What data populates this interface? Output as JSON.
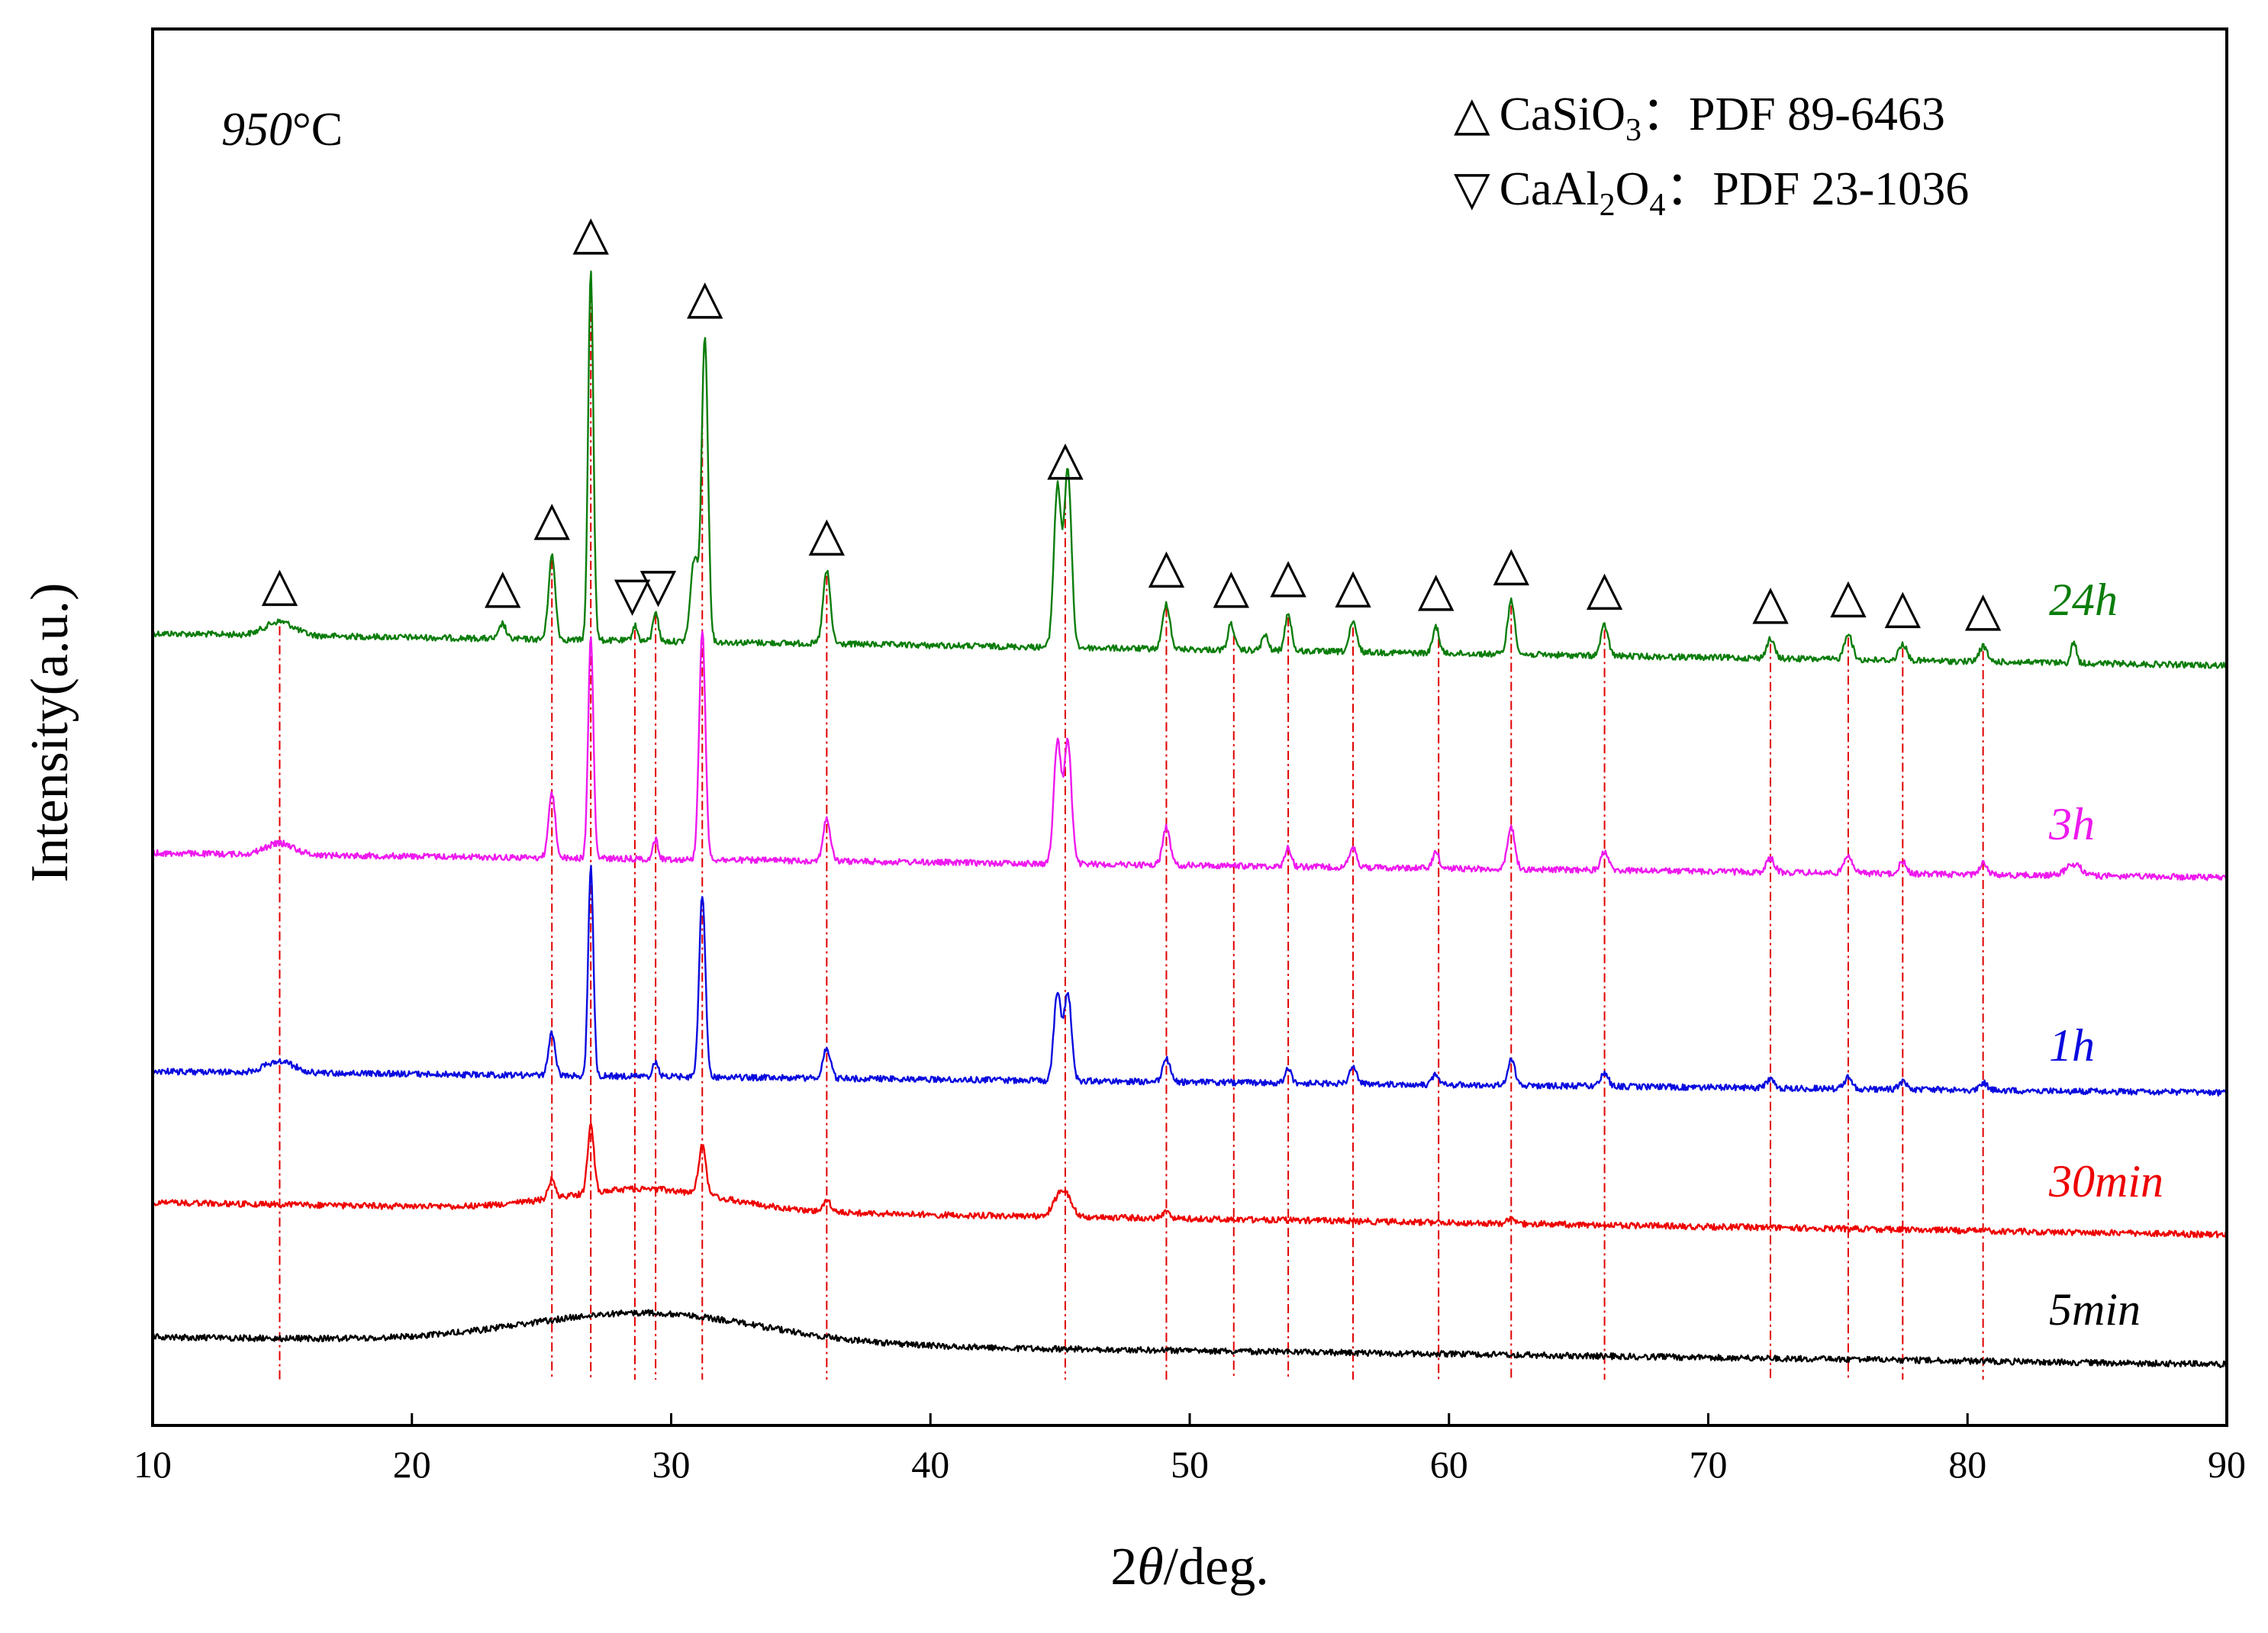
{
  "chart_data": {
    "type": "line",
    "title": "",
    "xlabel": "2θ/deg.",
    "xlabel_prefix": "2",
    "xlabel_theta": "θ",
    "xlabel_suffix": "/deg.",
    "ylabel": "Intensity(a.u.)",
    "xlim": [
      10,
      90
    ],
    "xticks": [
      10,
      20,
      30,
      40,
      50,
      60,
      70,
      80,
      90
    ],
    "annotation": {
      "temp_value": "950",
      "temp_unit": "°C"
    },
    "legend": [
      {
        "symbol": "△",
        "formula": "CaSiO",
        "sub": "3",
        "pdf": "：PDF 89-6463"
      },
      {
        "symbol": "▽",
        "formula": "CaAl",
        "sub": "2",
        "formula2": "O",
        "sub2": "4",
        "pdf": "：PDF 23-1036"
      }
    ],
    "reference_lines_2theta": [
      14.9,
      25.4,
      26.9,
      28.6,
      29.4,
      31.2,
      36.0,
      45.2,
      49.1,
      51.7,
      53.8,
      56.3,
      59.6,
      62.4,
      66.0,
      72.4,
      75.4,
      77.5,
      80.6
    ],
    "reference_line_color": "#e00000",
    "markers": [
      {
        "x": 14.9,
        "symbol": "△",
        "level": 0.0
      },
      {
        "x": 23.5,
        "symbol": "△",
        "level": 0.0
      },
      {
        "x": 25.4,
        "symbol": "△",
        "level": 1.0
      },
      {
        "x": 26.9,
        "symbol": "△",
        "level": 4.0
      },
      {
        "x": 28.5,
        "symbol": "▽",
        "level": 0.0
      },
      {
        "x": 29.5,
        "symbol": "▽",
        "level": 0.0
      },
      {
        "x": 31.3,
        "symbol": "△",
        "level": 3.2
      },
      {
        "x": 36.0,
        "symbol": "△",
        "level": 0.4
      },
      {
        "x": 45.2,
        "symbol": "△",
        "level": 1.9
      },
      {
        "x": 49.1,
        "symbol": "△",
        "level": 0.0
      },
      {
        "x": 51.6,
        "symbol": "△",
        "level": 0.0
      },
      {
        "x": 53.8,
        "symbol": "△",
        "level": 0.0
      },
      {
        "x": 56.3,
        "symbol": "△",
        "level": 0.0
      },
      {
        "x": 59.5,
        "symbol": "△",
        "level": 0.0
      },
      {
        "x": 62.4,
        "symbol": "△",
        "level": 0.0
      },
      {
        "x": 66.0,
        "symbol": "△",
        "level": 0.0
      },
      {
        "x": 72.4,
        "symbol": "△",
        "level": 0.0
      },
      {
        "x": 75.4,
        "symbol": "△",
        "level": 0.0
      },
      {
        "x": 77.5,
        "symbol": "△",
        "level": 0.0
      },
      {
        "x": 80.6,
        "symbol": "△",
        "level": 0.0
      }
    ],
    "series": [
      {
        "name": "24h",
        "color": "#0b7d0b",
        "baseline": [
          [
            10,
            830
          ],
          [
            90,
            872
          ]
        ],
        "noise": 4,
        "peaks": [
          [
            14.9,
            18,
            0.55
          ],
          [
            23.5,
            20,
            0.12
          ],
          [
            25.4,
            110,
            0.13
          ],
          [
            26.9,
            485,
            0.1
          ],
          [
            28.6,
            20,
            0.1
          ],
          [
            29.4,
            40,
            0.1
          ],
          [
            30.9,
            110,
            0.15
          ],
          [
            31.3,
            400,
            0.12
          ],
          [
            36.0,
            95,
            0.14
          ],
          [
            44.9,
            210,
            0.14
          ],
          [
            45.3,
            230,
            0.14
          ],
          [
            49.1,
            60,
            0.14
          ],
          [
            51.6,
            35,
            0.12
          ],
          [
            52.9,
            20,
            0.12
          ],
          [
            53.8,
            50,
            0.12
          ],
          [
            56.3,
            38,
            0.14
          ],
          [
            59.5,
            35,
            0.12
          ],
          [
            62.4,
            70,
            0.14
          ],
          [
            66.0,
            40,
            0.14
          ],
          [
            72.4,
            25,
            0.15
          ],
          [
            75.4,
            35,
            0.15
          ],
          [
            77.5,
            22,
            0.15
          ],
          [
            80.6,
            20,
            0.15
          ],
          [
            84.1,
            28,
            0.1
          ]
        ]
      },
      {
        "name": "3h",
        "color": "#ee19ee",
        "baseline": [
          [
            10,
            1118
          ],
          [
            90,
            1150
          ]
        ],
        "noise": 4,
        "peaks": [
          [
            14.9,
            15,
            0.55
          ],
          [
            25.4,
            85,
            0.13
          ],
          [
            26.9,
            290,
            0.1
          ],
          [
            29.4,
            25,
            0.1
          ],
          [
            31.2,
            300,
            0.12
          ],
          [
            36.0,
            55,
            0.14
          ],
          [
            44.9,
            160,
            0.14
          ],
          [
            45.3,
            160,
            0.14
          ],
          [
            49.1,
            50,
            0.14
          ],
          [
            53.8,
            25,
            0.12
          ],
          [
            56.3,
            25,
            0.14
          ],
          [
            59.5,
            22,
            0.12
          ],
          [
            62.4,
            55,
            0.14
          ],
          [
            66.0,
            25,
            0.14
          ],
          [
            72.4,
            18,
            0.15
          ],
          [
            75.4,
            25,
            0.15
          ],
          [
            77.5,
            15,
            0.15
          ],
          [
            80.6,
            15,
            0.15
          ],
          [
            84.1,
            15,
            0.3
          ]
        ]
      },
      {
        "name": "1h",
        "color": "#0a0adf",
        "baseline": [
          [
            10,
            1404
          ],
          [
            90,
            1432
          ]
        ],
        "noise": 4,
        "peaks": [
          [
            14.9,
            15,
            0.55
          ],
          [
            25.4,
            55,
            0.13
          ],
          [
            26.9,
            275,
            0.1
          ],
          [
            29.4,
            20,
            0.1
          ],
          [
            31.2,
            240,
            0.12
          ],
          [
            36.0,
            40,
            0.14
          ],
          [
            44.9,
            115,
            0.14
          ],
          [
            45.3,
            115,
            0.14
          ],
          [
            49.1,
            30,
            0.14
          ],
          [
            53.8,
            20,
            0.12
          ],
          [
            56.3,
            20,
            0.14
          ],
          [
            59.5,
            15,
            0.12
          ],
          [
            62.4,
            35,
            0.14
          ],
          [
            66.0,
            18,
            0.14
          ],
          [
            72.4,
            12,
            0.15
          ],
          [
            75.4,
            15,
            0.15
          ],
          [
            77.5,
            10,
            0.15
          ],
          [
            80.6,
            10,
            0.15
          ]
        ]
      },
      {
        "name": "30min",
        "color": "#ee0000",
        "baseline": [
          [
            10,
            1576
          ],
          [
            90,
            1618
          ]
        ],
        "noise": 4,
        "peaks": [
          [
            29.0,
            28,
            3.0
          ],
          [
            25.4,
            25,
            0.13
          ],
          [
            26.9,
            90,
            0.12
          ],
          [
            31.2,
            65,
            0.14
          ],
          [
            36.0,
            15,
            0.14
          ],
          [
            45.1,
            35,
            0.3
          ],
          [
            49.1,
            8,
            0.15
          ],
          [
            62.4,
            8,
            0.15
          ]
        ]
      },
      {
        "name": "5min",
        "color": "#000000",
        "baseline": [
          [
            10,
            1752
          ],
          [
            90,
            1788
          ]
        ],
        "noise": 4,
        "peaks": [
          [
            29.0,
            40,
            4.5
          ]
        ]
      }
    ]
  }
}
